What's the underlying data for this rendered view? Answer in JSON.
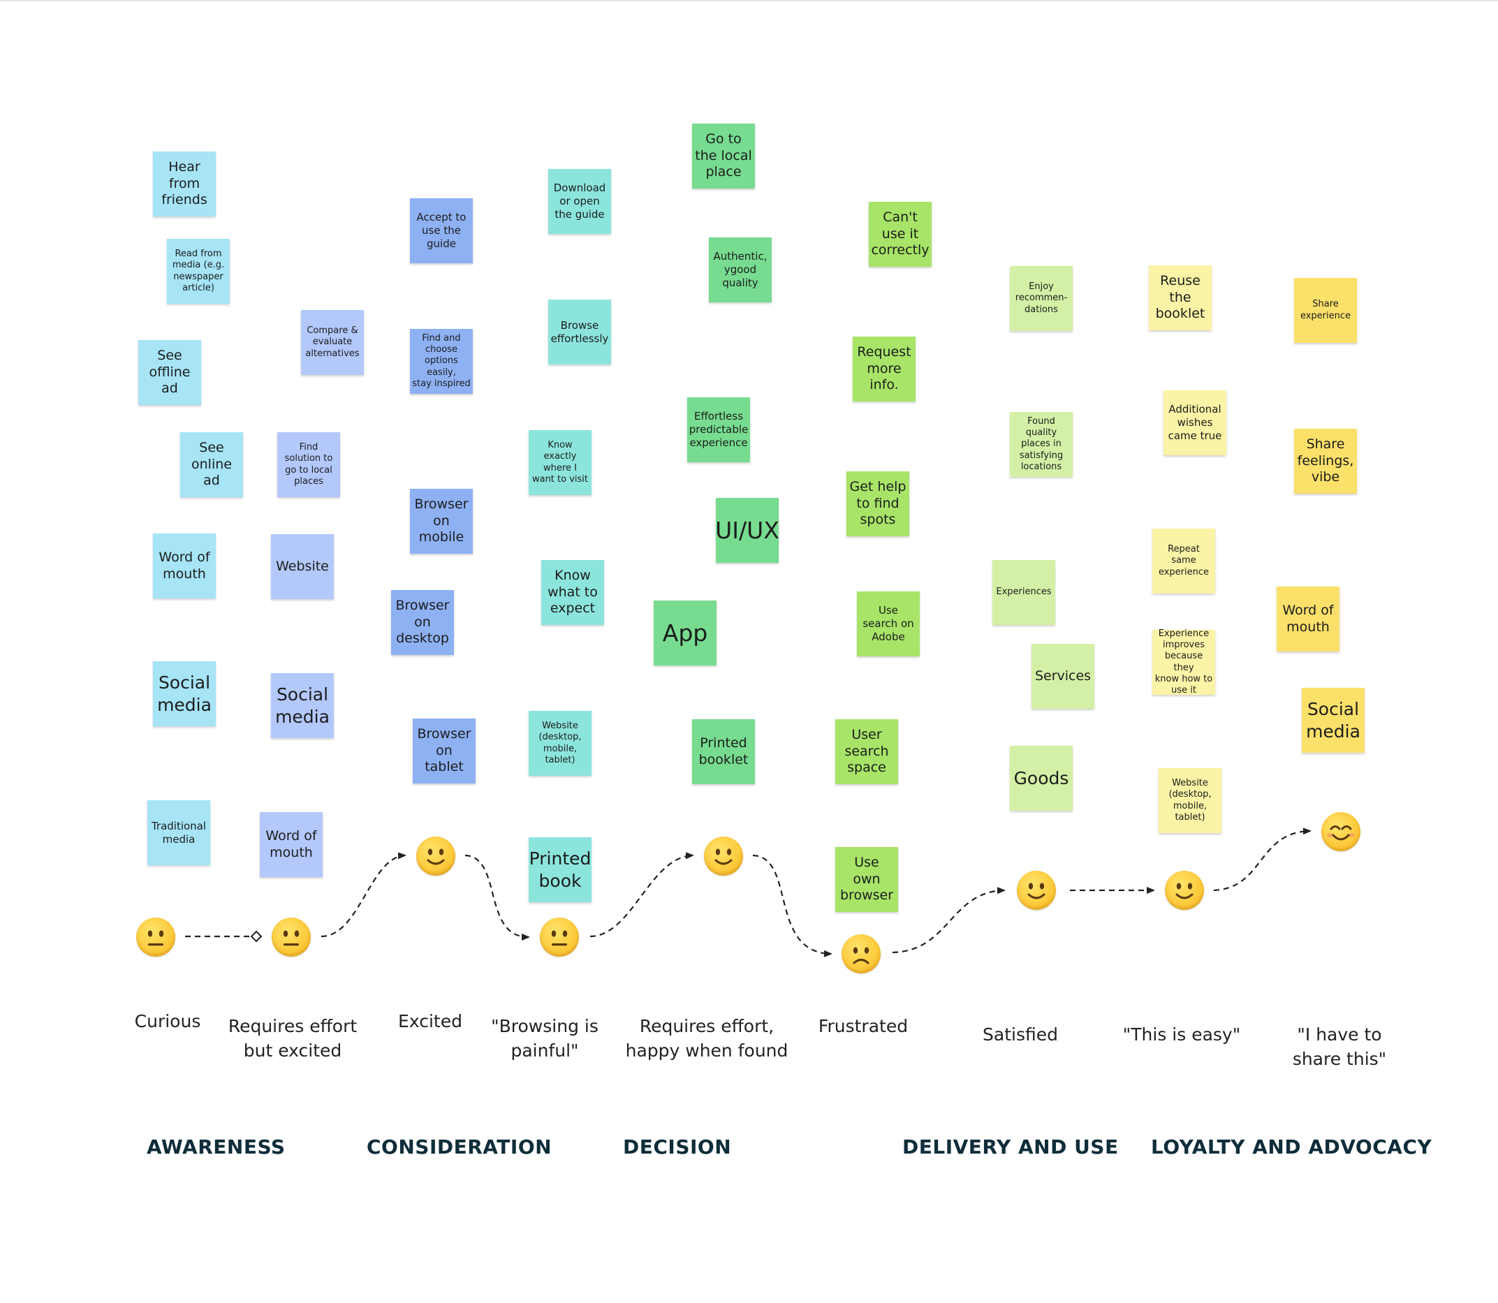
{
  "colors": {
    "cyan": "#a6e4f6",
    "periwinkle": "#b3c8fb",
    "blue": "#8eb1f3",
    "teal": "#8ce5dd",
    "green": "#77dc90",
    "lime": "#a7e468",
    "pale_green": "#d4f0a6",
    "light_yellow": "#fbf3a6",
    "yellow": "#fbe06a",
    "stage_text": "#0f2d3a"
  },
  "stickies": [
    {
      "text": "Hear\nfrom\nfriends",
      "color": "cyan"
    },
    {
      "text": "Read from\nmedia (e.g.\nnewspaper\narticle)",
      "color": "cyan"
    },
    {
      "text": "See\noffline\nad",
      "color": "cyan"
    },
    {
      "text": "See\nonline\nad",
      "color": "cyan"
    },
    {
      "text": "Word of\nmouth",
      "color": "cyan"
    },
    {
      "text": "Social\nmedia",
      "color": "cyan"
    },
    {
      "text": "Traditional\nmedia",
      "color": "cyan"
    },
    {
      "text": "Compare &\nevaluate\nalternatives",
      "color": "periwinkle"
    },
    {
      "text": "Find\nsolution to\ngo to local\nplaces",
      "color": "periwinkle"
    },
    {
      "text": "Website",
      "color": "periwinkle"
    },
    {
      "text": "Social\nmedia",
      "color": "periwinkle"
    },
    {
      "text": "Word of\nmouth",
      "color": "periwinkle"
    },
    {
      "text": "Accept to\nuse the\nguide",
      "color": "blue"
    },
    {
      "text": "Find and\nchoose\noptions easily,\nstay inspired",
      "color": "blue"
    },
    {
      "text": "Browser\non\nmobile",
      "color": "blue"
    },
    {
      "text": "Browser\non\ndesktop",
      "color": "blue"
    },
    {
      "text": "Browser\non\ntablet",
      "color": "blue"
    },
    {
      "text": "Download\nor open\nthe guide",
      "color": "teal"
    },
    {
      "text": "Browse\neffortlessly",
      "color": "teal"
    },
    {
      "text": "Know\nexactly\nwhere I\nwant to visit",
      "color": "teal"
    },
    {
      "text": "Know\nwhat to\nexpect",
      "color": "teal"
    },
    {
      "text": "Website\n(desktop,\nmobile,\ntablet)",
      "color": "teal"
    },
    {
      "text": "Printed\nbook",
      "color": "teal"
    },
    {
      "text": "Go to\nthe local\nplace",
      "color": "green"
    },
    {
      "text": "Authentic,\nygood\nquality",
      "color": "green"
    },
    {
      "text": "Effortless\npredictable\nexperience",
      "color": "green"
    },
    {
      "text": "UI/UX",
      "color": "green"
    },
    {
      "text": "App",
      "color": "green"
    },
    {
      "text": "Printed\nbooklet",
      "color": "green"
    },
    {
      "text": "Can't\nuse it\ncorrectly",
      "color": "lime"
    },
    {
      "text": "Request\nmore\ninfo.",
      "color": "lime"
    },
    {
      "text": "Get help\nto find\nspots",
      "color": "lime"
    },
    {
      "text": "Use\nsearch on\nAdobe",
      "color": "lime"
    },
    {
      "text": "User\nsearch\nspace",
      "color": "lime"
    },
    {
      "text": "Use\nown\nbrowser",
      "color": "lime"
    },
    {
      "text": "Enjoy\nrecommen-\ndations",
      "color": "pale_green"
    },
    {
      "text": "Found quality\nplaces in\nsatisfying\nlocations",
      "color": "pale_green"
    },
    {
      "text": "Experiences",
      "color": "pale_green"
    },
    {
      "text": "Services",
      "color": "pale_green"
    },
    {
      "text": "Goods",
      "color": "pale_green"
    },
    {
      "text": "Reuse\nthe\nbooklet",
      "color": "light_yellow"
    },
    {
      "text": "Additional\nwishes\ncame true",
      "color": "light_yellow"
    },
    {
      "text": "Repeat\nsame\nexperience",
      "color": "light_yellow"
    },
    {
      "text": "Experience\nimproves\nbecause they\nknow how to\nuse it",
      "color": "light_yellow"
    },
    {
      "text": "Website\n(desktop,\nmobile,\ntablet)",
      "color": "light_yellow"
    },
    {
      "text": "Share\nexperience",
      "color": "yellow"
    },
    {
      "text": "Share\nfeelings,\nvibe",
      "color": "yellow"
    },
    {
      "text": "Word of\nmouth",
      "color": "yellow"
    },
    {
      "text": "Social\nmedia",
      "color": "yellow"
    }
  ],
  "emotions": [
    {
      "icon": "neutral-face-icon"
    },
    {
      "icon": "neutral-face-icon"
    },
    {
      "icon": "smiling-face-icon"
    },
    {
      "icon": "neutral-face-icon"
    },
    {
      "icon": "smiling-face-icon"
    },
    {
      "icon": "frowning-face-icon"
    },
    {
      "icon": "smiling-face-icon"
    },
    {
      "icon": "smiling-face-icon"
    },
    {
      "icon": "happy-face-icon"
    }
  ],
  "feelings": [
    "Curious",
    "Requires effort\nbut excited",
    "Excited",
    "\"Browsing is\npainful\"",
    "Requires effort,\nhappy when found",
    "Frustrated",
    "Satisfied",
    "\"This is easy\"",
    "\"I have to\nshare this\""
  ],
  "stages": [
    "AWARENESS",
    "CONSIDERATION",
    "DECISION",
    "DELIVERY AND USE",
    "LOYALTY AND ADVOCACY"
  ]
}
